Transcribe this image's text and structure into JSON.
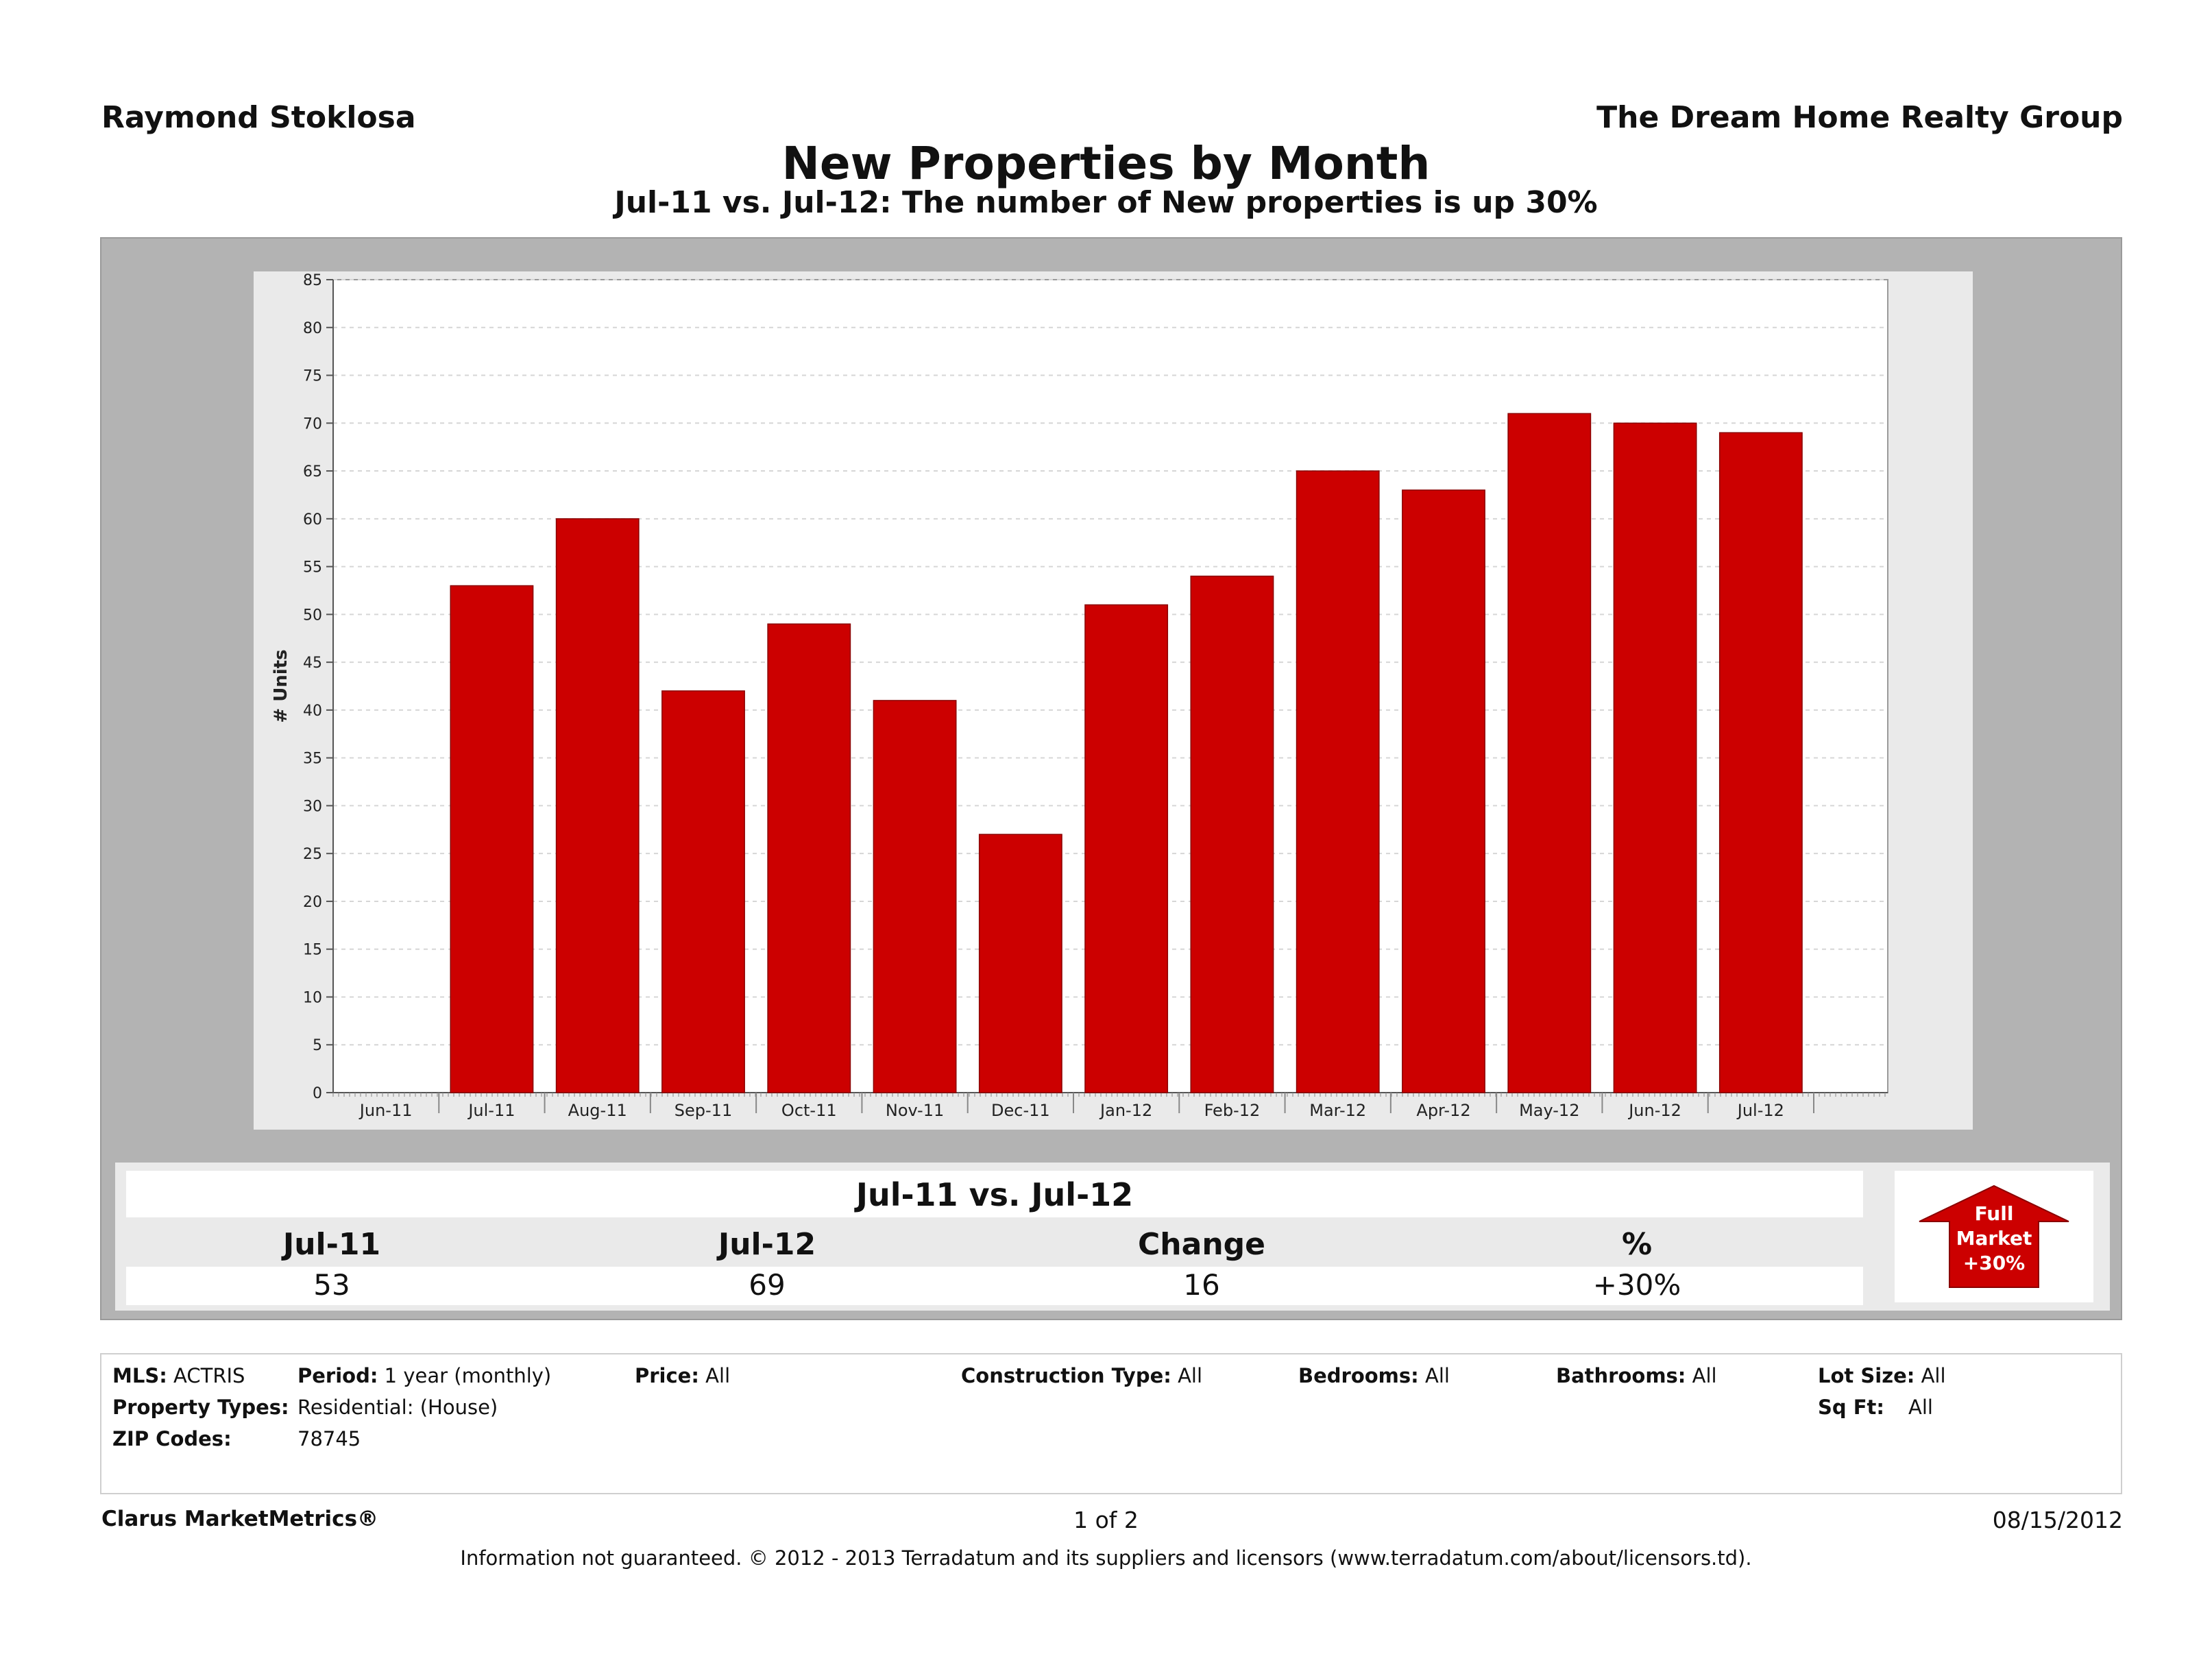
{
  "header": {
    "agent": "Raymond Stoklosa",
    "company": "The Dream Home Realty Group"
  },
  "chart_data": {
    "type": "bar",
    "title": "New Properties by Month",
    "subtitle": "Jul-11 vs. Jul-12: The number of New properties is up 30%",
    "ylabel": "# Units",
    "ylim": [
      0,
      85
    ],
    "yticks": [
      0,
      5,
      10,
      15,
      20,
      25,
      30,
      35,
      40,
      45,
      50,
      55,
      60,
      65,
      70,
      75,
      80,
      85
    ],
    "categories": [
      "Jun-11",
      "Jul-11",
      "Aug-11",
      "Sep-11",
      "Oct-11",
      "Nov-11",
      "Dec-11",
      "Jan-12",
      "Feb-12",
      "Mar-12",
      "Apr-12",
      "May-12",
      "Jun-12",
      "Jul-12"
    ],
    "values": [
      null,
      53,
      60,
      42,
      49,
      41,
      27,
      51,
      54,
      65,
      63,
      71,
      70,
      69
    ],
    "bar_color": "#cc0000",
    "grid": true
  },
  "summary": {
    "title": "Jul-11 vs. Jul-12",
    "headers": [
      "Jul-11",
      "Jul-12",
      "Change",
      "%"
    ],
    "values": [
      "53",
      "69",
      "16",
      "+30%"
    ],
    "badge": {
      "line1": "Full",
      "line2": "Market",
      "line3": "+30%",
      "color": "#cc0000"
    }
  },
  "criteria": {
    "mls_label": "MLS:",
    "mls_value": "ACTRIS",
    "period_label": "Period:",
    "period_value": "1 year (monthly)",
    "price_label": "Price:",
    "price_value": "All",
    "construction_label": "Construction Type:",
    "construction_value": "All",
    "bedrooms_label": "Bedrooms:",
    "bedrooms_value": "All",
    "bathrooms_label": "Bathrooms:",
    "bathrooms_value": "All",
    "lot_label": "Lot Size:",
    "lot_value": "All",
    "proptype_label": "Property Types:",
    "proptype_value": "Residential: (House)",
    "sqft_label": "Sq Ft:",
    "sqft_value": "All",
    "zip_label": "ZIP Codes:",
    "zip_value": "78745"
  },
  "footer": {
    "brand": "Clarus MarketMetrics®",
    "page": "1 of 2",
    "date": "08/15/2012",
    "legal": "Information not guaranteed.  © 2012 - 2013 Terradatum and its suppliers and licensors (www.terradatum.com/about/licensors.td)."
  }
}
